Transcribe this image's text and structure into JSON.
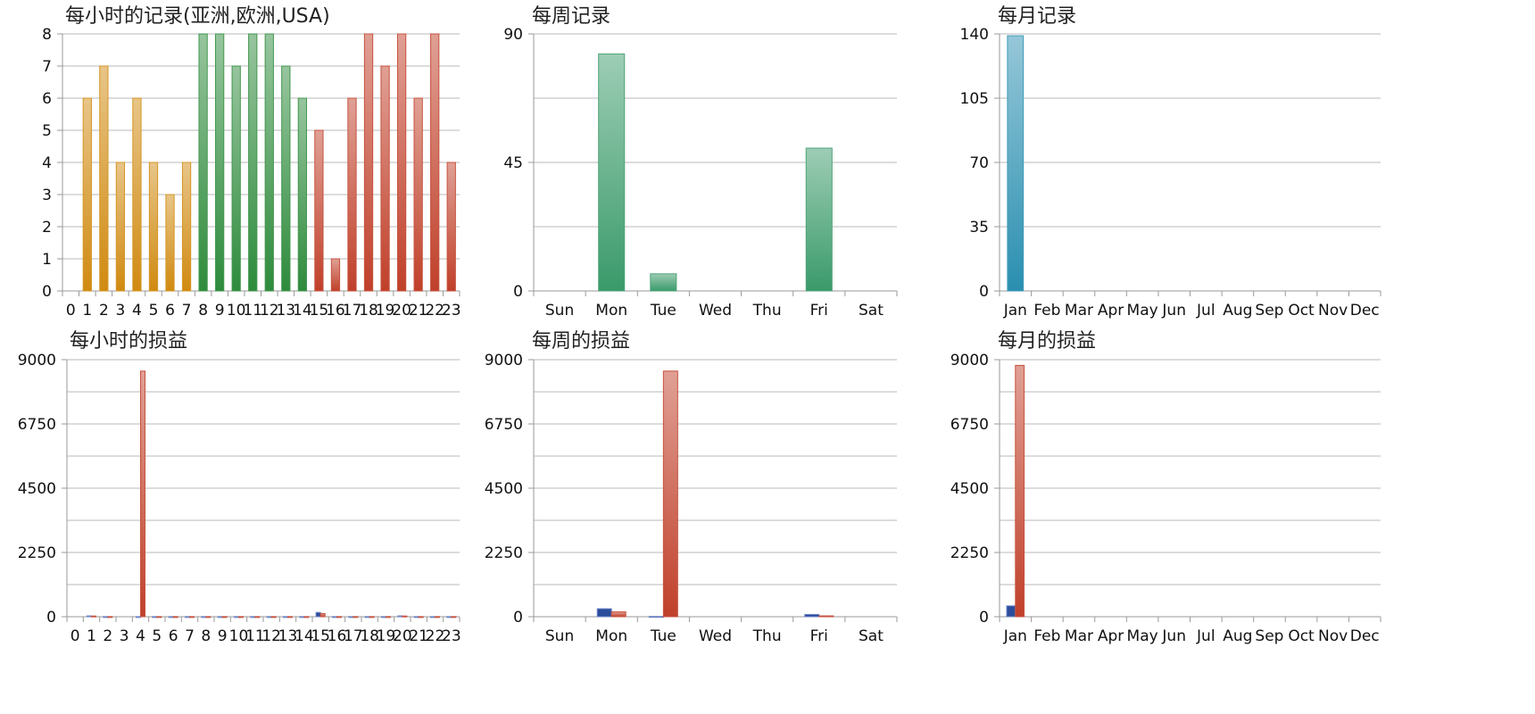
{
  "chart_data": [
    {
      "type": "bar",
      "title": "每小时的记录(亚洲,欧洲,USA)",
      "categories": [
        "0",
        "1",
        "2",
        "3",
        "4",
        "5",
        "6",
        "7",
        "8",
        "9",
        "10",
        "11",
        "12",
        "13",
        "14",
        "15",
        "16",
        "17",
        "18",
        "19",
        "20",
        "21",
        "22",
        "23"
      ],
      "values": [
        0,
        6,
        7,
        4,
        6,
        4,
        3,
        4,
        8,
        8,
        7,
        8,
        8,
        7,
        6,
        5,
        1,
        6,
        8,
        7,
        8,
        6,
        8,
        4
      ],
      "bar_colors_by_session": {
        "asia_0_7": "#d08a10",
        "europe_8_14": "#2e8b3c",
        "usa_15_23": "#c0402a"
      },
      "yticks": [
        "0",
        "1",
        "2",
        "3",
        "4",
        "5",
        "6",
        "7",
        "8"
      ],
      "ylim": [
        0,
        8
      ],
      "grid": true
    },
    {
      "type": "bar",
      "title": "每周记录",
      "categories": [
        "Sun",
        "Mon",
        "Tue",
        "Wed",
        "Thu",
        "Fri",
        "Sat"
      ],
      "values": [
        0,
        83,
        6,
        0,
        0,
        50,
        0
      ],
      "color": "#3a9a6a",
      "yticks": [
        "0",
        "45",
        "90"
      ],
      "ylim": [
        0,
        90
      ],
      "grid": true
    },
    {
      "type": "bar",
      "title": "每月记录",
      "categories": [
        "Jan",
        "Feb",
        "Mar",
        "Apr",
        "May",
        "Jun",
        "Jul",
        "Aug",
        "Sep",
        "Oct",
        "Nov",
        "Dec"
      ],
      "values": [
        139,
        0,
        0,
        0,
        0,
        0,
        0,
        0,
        0,
        0,
        0,
        0
      ],
      "color": "#2a8fb0",
      "yticks": [
        "0",
        "35",
        "70",
        "105",
        "140"
      ],
      "ylim": [
        0,
        140
      ],
      "grid": true
    },
    {
      "type": "bar",
      "title": "每小时的损益",
      "categories": [
        "0",
        "1",
        "2",
        "3",
        "4",
        "5",
        "6",
        "7",
        "8",
        "9",
        "10",
        "11",
        "12",
        "13",
        "14",
        "15",
        "16",
        "17",
        "18",
        "19",
        "20",
        "21",
        "22",
        "23"
      ],
      "series": [
        {
          "color": "#2b4c9b",
          "values": [
            0,
            30,
            5,
            0,
            5,
            5,
            5,
            5,
            5,
            5,
            5,
            5,
            5,
            5,
            5,
            150,
            5,
            5,
            5,
            5,
            30,
            5,
            5,
            5
          ]
        },
        {
          "color": "#c0402a",
          "values": [
            0,
            25,
            5,
            0,
            8600,
            5,
            5,
            5,
            5,
            5,
            5,
            5,
            5,
            5,
            5,
            110,
            5,
            5,
            5,
            5,
            25,
            5,
            5,
            5
          ]
        }
      ],
      "yticks": [
        "0",
        "2250",
        "4500",
        "6750",
        "9000"
      ],
      "ylim": [
        0,
        9000
      ],
      "grid": true
    },
    {
      "type": "bar",
      "title": "每周的损益",
      "categories": [
        "Sun",
        "Mon",
        "Tue",
        "Wed",
        "Thu",
        "Fri",
        "Sat"
      ],
      "series": [
        {
          "color": "#2b4c9b",
          "values": [
            0,
            280,
            10,
            0,
            0,
            80,
            0
          ]
        },
        {
          "color": "#c0402a",
          "values": [
            0,
            170,
            8600,
            0,
            0,
            30,
            0
          ]
        }
      ],
      "yticks": [
        "0",
        "2250",
        "4500",
        "6750",
        "9000"
      ],
      "ylim": [
        0,
        9000
      ],
      "grid": true
    },
    {
      "type": "bar",
      "title": "每月的损益",
      "categories": [
        "Jan",
        "Feb",
        "Mar",
        "Apr",
        "May",
        "Jun",
        "Jul",
        "Aug",
        "Sep",
        "Oct",
        "Nov",
        "Dec"
      ],
      "series": [
        {
          "color": "#2b4c9b",
          "values": [
            380,
            0,
            0,
            0,
            0,
            0,
            0,
            0,
            0,
            0,
            0,
            0
          ]
        },
        {
          "color": "#c0402a",
          "values": [
            8800,
            0,
            0,
            0,
            0,
            0,
            0,
            0,
            0,
            0,
            0,
            0
          ]
        }
      ],
      "yticks": [
        "0",
        "2250",
        "4500",
        "6750",
        "9000"
      ],
      "ylim": [
        0,
        9000
      ],
      "grid": true
    }
  ]
}
